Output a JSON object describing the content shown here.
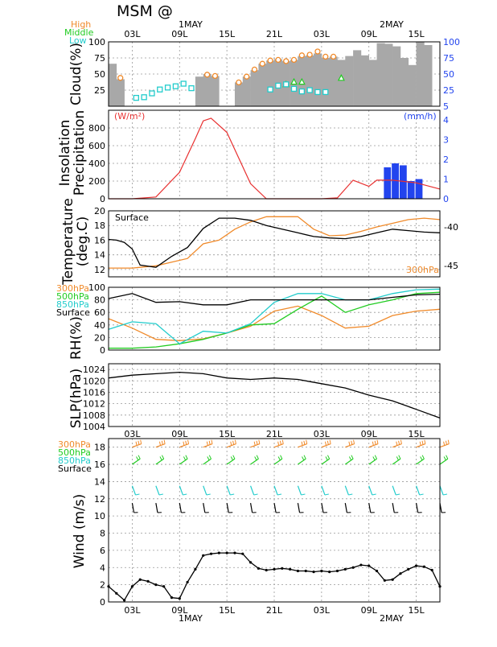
{
  "title": "MSM @",
  "time_axis": {
    "labels": [
      "03L",
      "09L",
      "15L",
      "21L",
      "03L",
      "09L",
      "15L"
    ],
    "dates": [
      "1MAY",
      "2MAY"
    ]
  },
  "colors": {
    "high": "#f08a2a",
    "middle": "#22cc22",
    "low": "#22cccc",
    "insolation": "#e83030",
    "precip": "#2244ee",
    "right_axis": "#2244ee"
  },
  "panels": {
    "cloud": {
      "ylabel": "Cloud(%)",
      "legend": [
        "High",
        "Middle",
        "Low"
      ],
      "yticks": [
        "25",
        "50",
        "75",
        "100"
      ],
      "yticks_right": [
        "5",
        "25",
        "50",
        "75",
        "100"
      ]
    },
    "insolation": {
      "ylabel_1": "Insolation",
      "ylabel_2": "Precipitation",
      "left_unit": "(W/m²)",
      "right_unit": "(mm/h)",
      "yticks": [
        "0",
        "200",
        "400",
        "600",
        "800"
      ],
      "yticks_right": [
        "0",
        "1",
        "2",
        "3",
        "4"
      ]
    },
    "temperature": {
      "ylabel_1": "Temperature",
      "ylabel_2": "(deg.C)",
      "surface_label": "Surface",
      "upper_label": "300hPa",
      "yticks": [
        "12",
        "14",
        "16",
        "18",
        "20"
      ],
      "yticks_right": [
        "-40",
        "-45"
      ]
    },
    "rh": {
      "ylabel": "RH(%)",
      "legend": [
        "300hPa",
        "500hPa",
        "850hPa",
        "Surface"
      ],
      "yticks": [
        "0",
        "20",
        "40",
        "60",
        "80",
        "100"
      ]
    },
    "slp": {
      "ylabel": "SLP(hPa)",
      "yticks": [
        "1004",
        "1008",
        "1012",
        "1016",
        "1020",
        "1024"
      ]
    },
    "wind": {
      "ylabel": "Wind (m/s)",
      "legend": [
        "300hPa",
        "500hPa",
        "850hPa",
        "Surface"
      ],
      "yticks": [
        "0",
        "2",
        "4",
        "6",
        "8",
        "10",
        "12",
        "14",
        "16",
        "18"
      ]
    }
  },
  "chart_data": [
    {
      "type": "bar",
      "title": "",
      "ylabel": "Cloud(%)",
      "x_hours": [
        0,
        1,
        2,
        3,
        4,
        5,
        6,
        7,
        8,
        9,
        10,
        11,
        12,
        13,
        14,
        15,
        16,
        17,
        18,
        19,
        20,
        21,
        22,
        23,
        24,
        25,
        26,
        27,
        28,
        29,
        30,
        31,
        32,
        33,
        34,
        35,
        36,
        37,
        38,
        39,
        40
      ],
      "ylim": [
        0,
        100
      ],
      "series": [
        {
          "name": "Total",
          "values": [
            66,
            42,
            0,
            0,
            0,
            0,
            0,
            0,
            0,
            0,
            0,
            46,
            50,
            47,
            0,
            0,
            37,
            46,
            56,
            66,
            71,
            73,
            70,
            72,
            78,
            79,
            82,
            75,
            77,
            72,
            78,
            87,
            79,
            72,
            98,
            97,
            93,
            75,
            64,
            100,
            95
          ]
        },
        {
          "name": "High",
          "values": [
            null,
            44,
            null,
            null,
            null,
            null,
            null,
            null,
            null,
            null,
            null,
            null,
            49,
            47,
            null,
            null,
            37,
            46,
            57,
            66,
            71,
            72,
            70,
            72,
            79,
            80,
            85,
            77,
            77,
            null,
            null,
            null,
            null,
            null,
            null,
            null,
            null,
            null,
            null,
            null,
            null
          ]
        },
        {
          "name": "Middle",
          "values": [
            null,
            null,
            null,
            null,
            null,
            null,
            null,
            null,
            null,
            null,
            null,
            null,
            null,
            null,
            null,
            null,
            null,
            null,
            null,
            null,
            null,
            null,
            34,
            38,
            38,
            null,
            null,
            null,
            null,
            44,
            null,
            null,
            null,
            null,
            null,
            null,
            null,
            null,
            null,
            null,
            null
          ]
        },
        {
          "name": "Low",
          "values": [
            null,
            null,
            null,
            13,
            14,
            20,
            26,
            29,
            31,
            35,
            28,
            null,
            null,
            null,
            null,
            null,
            null,
            null,
            null,
            null,
            26,
            32,
            34,
            27,
            23,
            25,
            22,
            22,
            null,
            null,
            null,
            null,
            null,
            null,
            null,
            null,
            null,
            null,
            null,
            null,
            null
          ]
        }
      ]
    },
    {
      "type": "line",
      "title": "",
      "ylabel": "Insolation Precipitation",
      "x_hours": [
        0,
        3,
        6,
        9,
        11,
        12,
        13,
        15,
        18,
        20,
        21,
        24,
        27,
        29,
        30,
        31,
        33,
        34,
        36,
        39,
        42
      ],
      "ylim": [
        0,
        1000
      ],
      "series": [
        {
          "name": "Insolation",
          "values": [
            0,
            0,
            20,
            300,
            680,
            880,
            910,
            750,
            170,
            0,
            0,
            0,
            0,
            10,
            110,
            210,
            140,
            210,
            210,
            180,
            110
          ]
        }
      ],
      "precip": {
        "x": [
          35,
          36,
          37,
          38,
          39
        ],
        "values": [
          1.6,
          1.8,
          1.7,
          0.9,
          1.0
        ]
      }
    },
    {
      "type": "line",
      "title": "",
      "ylabel": "Temperature (deg.C)",
      "x_hours": [
        0,
        1,
        2,
        3,
        4,
        6,
        8,
        10,
        12,
        14,
        16,
        18,
        20,
        22,
        24,
        26,
        28,
        30,
        32,
        34,
        36,
        38,
        40,
        42
      ],
      "ylim": [
        11,
        20
      ],
      "series": [
        {
          "name": "Surface",
          "values": [
            16.1,
            16.0,
            15.7,
            14.8,
            12.6,
            12.3,
            13.8,
            15.0,
            17.6,
            19.0,
            19.0,
            18.7,
            18.0,
            17.5,
            17.0,
            16.5,
            16.3,
            16.2,
            16.5,
            17.0,
            17.5,
            17.3,
            17.1,
            17.0
          ]
        },
        {
          "name": "300hPa",
          "values": [
            12.2,
            12.2,
            12.2,
            12.2,
            12.3,
            12.5,
            13.0,
            13.5,
            15.5,
            16.0,
            17.5,
            18.5,
            19.2,
            19.2,
            19.2,
            17.5,
            16.6,
            16.7,
            17.2,
            17.8,
            18.3,
            18.8,
            19.0,
            18.8
          ]
        }
      ]
    },
    {
      "type": "line",
      "title": "",
      "ylabel": "RH(%)",
      "x_hours": [
        0,
        3,
        6,
        9,
        12,
        15,
        18,
        21,
        24,
        27,
        30,
        33,
        36,
        39,
        42
      ],
      "ylim": [
        0,
        100
      ],
      "series": [
        {
          "name": "300hPa",
          "values": [
            50,
            35,
            17,
            15,
            18,
            27,
            38,
            62,
            70,
            55,
            35,
            38,
            55,
            62,
            65
          ]
        },
        {
          "name": "500hPa",
          "values": [
            3,
            3,
            5,
            10,
            17,
            27,
            40,
            42,
            65,
            86,
            60,
            72,
            80,
            90,
            92
          ]
        },
        {
          "name": "850hPa",
          "values": [
            33,
            45,
            42,
            10,
            30,
            27,
            42,
            76,
            90,
            90,
            80,
            80,
            90,
            96,
            97
          ]
        },
        {
          "name": "Surface",
          "values": [
            82,
            90,
            76,
            77,
            72,
            72,
            80,
            80,
            80,
            80,
            80,
            80,
            84,
            88,
            89
          ]
        }
      ]
    },
    {
      "type": "line",
      "title": "",
      "ylabel": "SLP(hPa)",
      "x_hours": [
        0,
        3,
        6,
        9,
        12,
        15,
        18,
        21,
        24,
        27,
        30,
        33,
        36,
        39,
        42
      ],
      "ylim": [
        1004,
        1026
      ],
      "series": [
        {
          "name": "SLP",
          "values": [
            1021,
            1022,
            1022.5,
            1023,
            1022.5,
            1021,
            1020.5,
            1021,
            1020.5,
            1019,
            1017.5,
            1015,
            1013,
            1010,
            1007
          ]
        }
      ]
    },
    {
      "type": "line",
      "title": "",
      "ylabel": "Wind (m/s)",
      "x_hours": [
        0,
        1,
        2,
        3,
        4,
        5,
        6,
        7,
        8,
        9,
        10,
        11,
        12,
        13,
        14,
        15,
        16,
        17,
        18,
        19,
        20,
        21,
        22,
        23,
        24,
        25,
        26,
        27,
        28,
        29,
        30,
        31,
        32,
        33,
        34,
        35,
        36,
        37,
        38,
        39,
        40,
        41,
        42
      ],
      "ylim": [
        0,
        19
      ],
      "series": [
        {
          "name": "Surface",
          "values": [
            1.8,
            1.0,
            0.2,
            1.8,
            2.6,
            2.4,
            2.0,
            1.8,
            0.5,
            0.4,
            2.3,
            3.8,
            5.4,
            5.6,
            5.7,
            5.7,
            5.7,
            5.6,
            4.6,
            3.9,
            3.7,
            3.8,
            3.9,
            3.8,
            3.6,
            3.6,
            3.5,
            3.6,
            3.5,
            3.6,
            3.8,
            4.0,
            4.3,
            4.2,
            3.6,
            2.5,
            2.6,
            3.3,
            3.8,
            4.2,
            4.1,
            3.7,
            1.8
          ]
        }
      ]
    }
  ]
}
